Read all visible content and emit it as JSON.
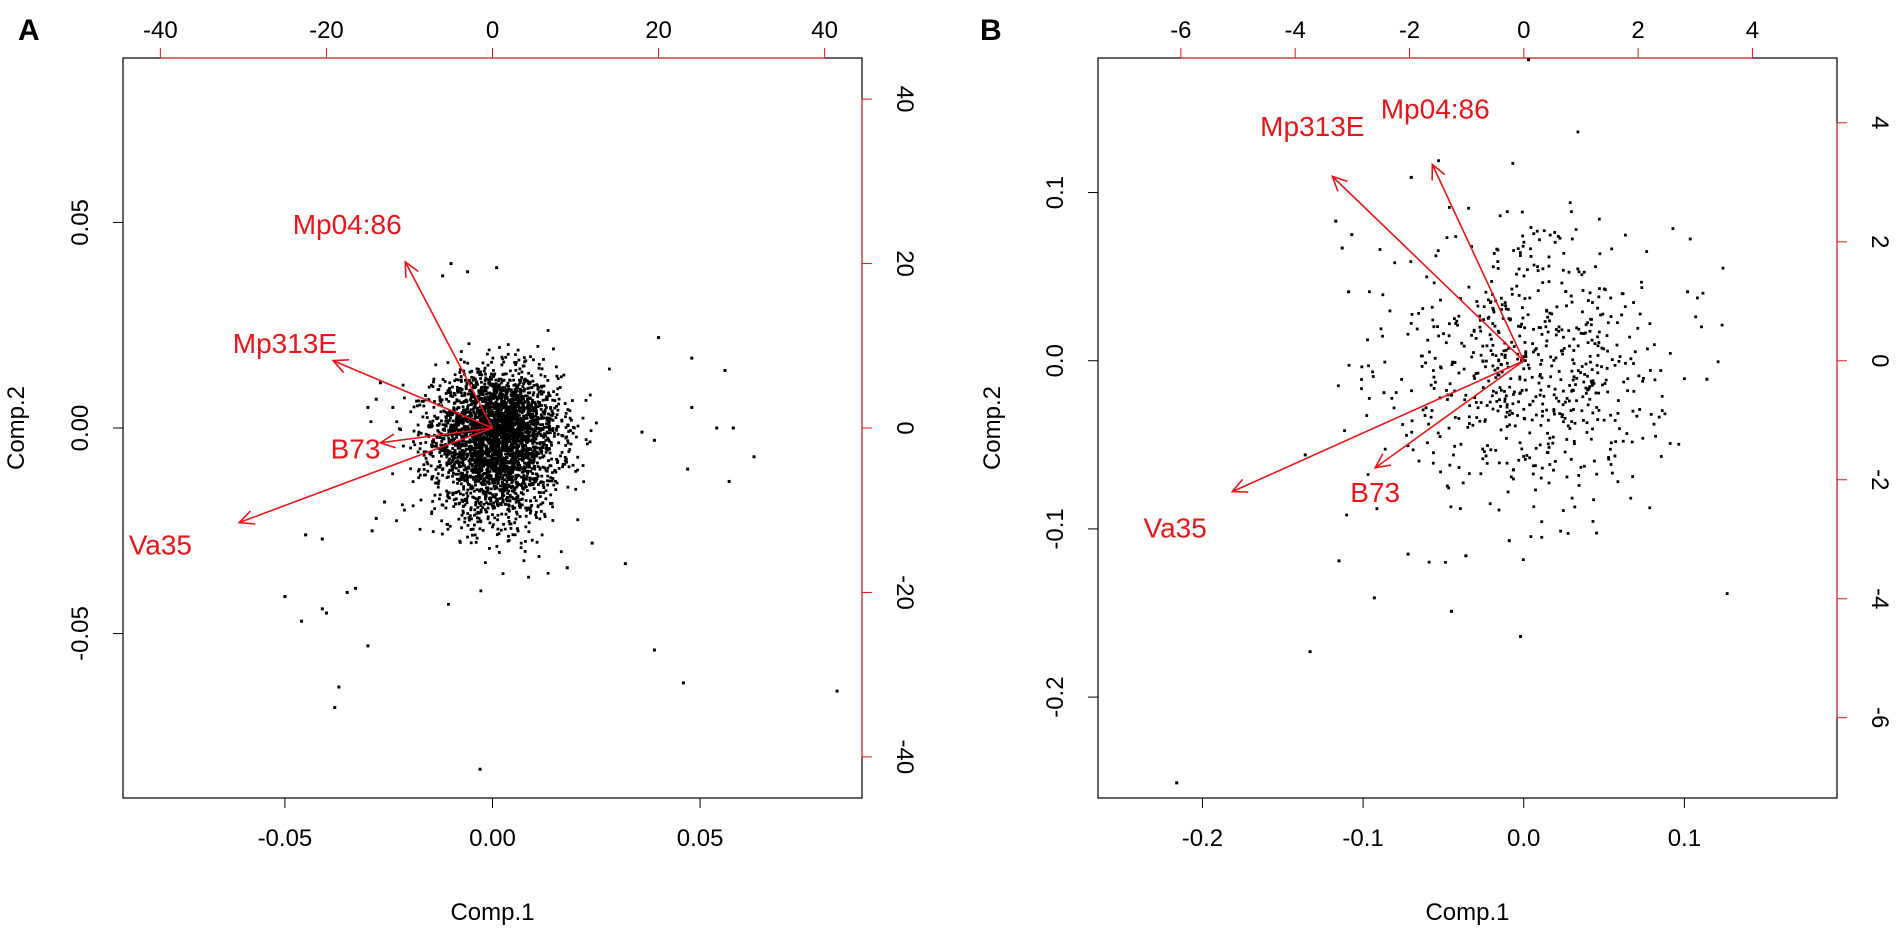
{
  "panel_labels": [
    "A",
    "B"
  ],
  "colors": {
    "points": "#000000",
    "loadings": "#e8151b",
    "axis": "#000000"
  },
  "chart_data": [
    {
      "type": "scatter",
      "subtype": "biplot",
      "panel": "A",
      "xlabel": "Comp.1",
      "ylabel": "Comp.2",
      "xlim": [
        -0.089,
        0.089
      ],
      "ylim": [
        -0.09,
        0.09
      ],
      "xticks": [
        -0.05,
        0.0,
        0.05
      ],
      "xtick_labels": [
        "-0.05",
        "0.00",
        "0.05"
      ],
      "yticks": [
        -0.05,
        0.0,
        0.05
      ],
      "ytick_labels": [
        "-0.05",
        "0.00",
        "0.05"
      ],
      "top_ticks": [
        -40,
        -20,
        0,
        20,
        40
      ],
      "top_tick_labels": [
        "-40",
        "-20",
        "0",
        "20",
        "40"
      ],
      "top_lim": [
        -44.5,
        44.5
      ],
      "right_ticks": [
        -40,
        -20,
        0,
        20,
        40
      ],
      "right_tick_labels": [
        "-40",
        "-20",
        "0",
        "20",
        "40"
      ],
      "right_lim": [
        -45,
        45
      ],
      "loadings": [
        {
          "name": "Mp04:86",
          "x": -10.5,
          "y": 20.2,
          "lx": -17.5,
          "ly": 24.5
        },
        {
          "name": "Mp313E",
          "x": -19.2,
          "y": 8.2,
          "lx": -25,
          "ly": 10
        },
        {
          "name": "B73",
          "x": -13.5,
          "y": -1.8,
          "lx": -16.5,
          "ly": -2.8
        },
        {
          "name": "Va35",
          "x": -30.5,
          "y": -11.5,
          "lx": -40,
          "ly": -14.5
        }
      ],
      "outliers": [
        [
          -0.05,
          -0.041
        ],
        [
          -0.046,
          -0.047
        ],
        [
          -0.041,
          -0.044
        ],
        [
          -0.04,
          -0.045
        ],
        [
          -0.037,
          -0.063
        ],
        [
          -0.038,
          -0.068
        ],
        [
          -0.03,
          -0.053
        ],
        [
          -0.033,
          -0.039
        ],
        [
          -0.035,
          -0.04
        ],
        [
          -0.041,
          -0.027
        ],
        [
          -0.045,
          -0.026
        ],
        [
          -0.003,
          -0.083
        ],
        [
          0.039,
          -0.054
        ],
        [
          0.046,
          -0.062
        ],
        [
          0.083,
          -0.064
        ],
        [
          0.04,
          0.022
        ],
        [
          0.048,
          0.017
        ],
        [
          0.048,
          0.005
        ],
        [
          0.056,
          0.014
        ],
        [
          0.057,
          -0.013
        ],
        [
          0.063,
          -0.007
        ],
        [
          0.054,
          0.0
        ],
        [
          0.058,
          0.0
        ],
        [
          0.047,
          -0.01
        ],
        [
          0.039,
          -0.003
        ],
        [
          0.036,
          -0.001
        ],
        [
          0.032,
          -0.033
        ],
        [
          0.018,
          -0.034
        ],
        [
          0.024,
          -0.028
        ],
        [
          -0.01,
          0.04
        ],
        [
          0.001,
          0.039
        ],
        [
          -0.006,
          0.038
        ],
        [
          -0.012,
          0.037
        ],
        [
          -0.027,
          0.011
        ],
        [
          -0.03,
          0.005
        ],
        [
          -0.028,
          0.007
        ],
        [
          -0.024,
          0.005
        ],
        [
          -0.026,
          -0.018
        ],
        [
          -0.028,
          -0.022
        ],
        [
          -0.029,
          -0.025
        ]
      ],
      "cloud": {
        "center": [
          0.001,
          -0.002
        ],
        "spread": [
          0.0075,
          0.0075
        ],
        "count": 3400
      }
    },
    {
      "type": "scatter",
      "subtype": "biplot",
      "panel": "B",
      "xlabel": "Comp.1",
      "ylabel": "Comp.2",
      "xlim": [
        -0.265,
        0.195
      ],
      "ylim": [
        -0.26,
        0.18
      ],
      "xticks": [
        -0.2,
        -0.1,
        0.0,
        0.1
      ],
      "xtick_labels": [
        "-0.2",
        "-0.1",
        "0.0",
        "0.1"
      ],
      "yticks": [
        -0.2,
        -0.1,
        0.0,
        0.1
      ],
      "ytick_labels": [
        "-0.2",
        "-0.1",
        "0.0",
        "0.1"
      ],
      "top_ticks": [
        -6,
        -4,
        -2,
        0,
        2,
        4
      ],
      "top_tick_labels": [
        "-6",
        "-4",
        "-2",
        "0",
        "2",
        "4"
      ],
      "top_lim": [
        -7.45,
        5.48
      ],
      "right_ticks": [
        -6,
        -4,
        -2,
        0,
        2,
        4
      ],
      "right_tick_labels": [
        "-6",
        "-4",
        "-2",
        "0",
        "2",
        "4"
      ],
      "right_lim": [
        -7.35,
        5.09
      ],
      "loadings": [
        {
          "name": "Mp04:86",
          "x": -1.6,
          "y": 3.3,
          "lx": -1.55,
          "ly": 4.2
        },
        {
          "name": "Mp313E",
          "x": -3.35,
          "y": 3.1,
          "lx": -3.7,
          "ly": 3.9
        },
        {
          "name": "B73",
          "x": -2.6,
          "y": -1.8,
          "lx": -2.6,
          "ly": -2.25
        },
        {
          "name": "Va35",
          "x": -5.1,
          "y": -2.2,
          "lx": -6.1,
          "ly": -2.85
        }
      ],
      "outliers": [
        [
          0.003,
          0.179
        ],
        [
          -0.216,
          -0.251
        ],
        [
          -0.133,
          -0.173
        ],
        [
          -0.093,
          -0.141
        ],
        [
          -0.045,
          -0.149
        ],
        [
          -0.002,
          -0.164
        ],
        [
          -0.115,
          -0.119
        ],
        [
          -0.036,
          -0.116
        ],
        [
          -0.009,
          -0.107
        ],
        [
          -0.072,
          -0.115
        ],
        [
          -0.136,
          -0.056
        ],
        [
          -0.087,
          -0.019
        ],
        [
          0.114,
          -0.011
        ],
        [
          0.102,
          0.041
        ],
        [
          -0.113,
          0.067
        ],
        [
          -0.117,
          0.083
        ],
        [
          -0.07,
          0.109
        ],
        [
          -0.109,
          0.041
        ],
        [
          -0.107,
          0.075
        ]
      ],
      "cloud": {
        "center": [
          0.005,
          -0.005
        ],
        "spread": [
          0.045,
          0.04
        ],
        "count": 700
      }
    }
  ]
}
